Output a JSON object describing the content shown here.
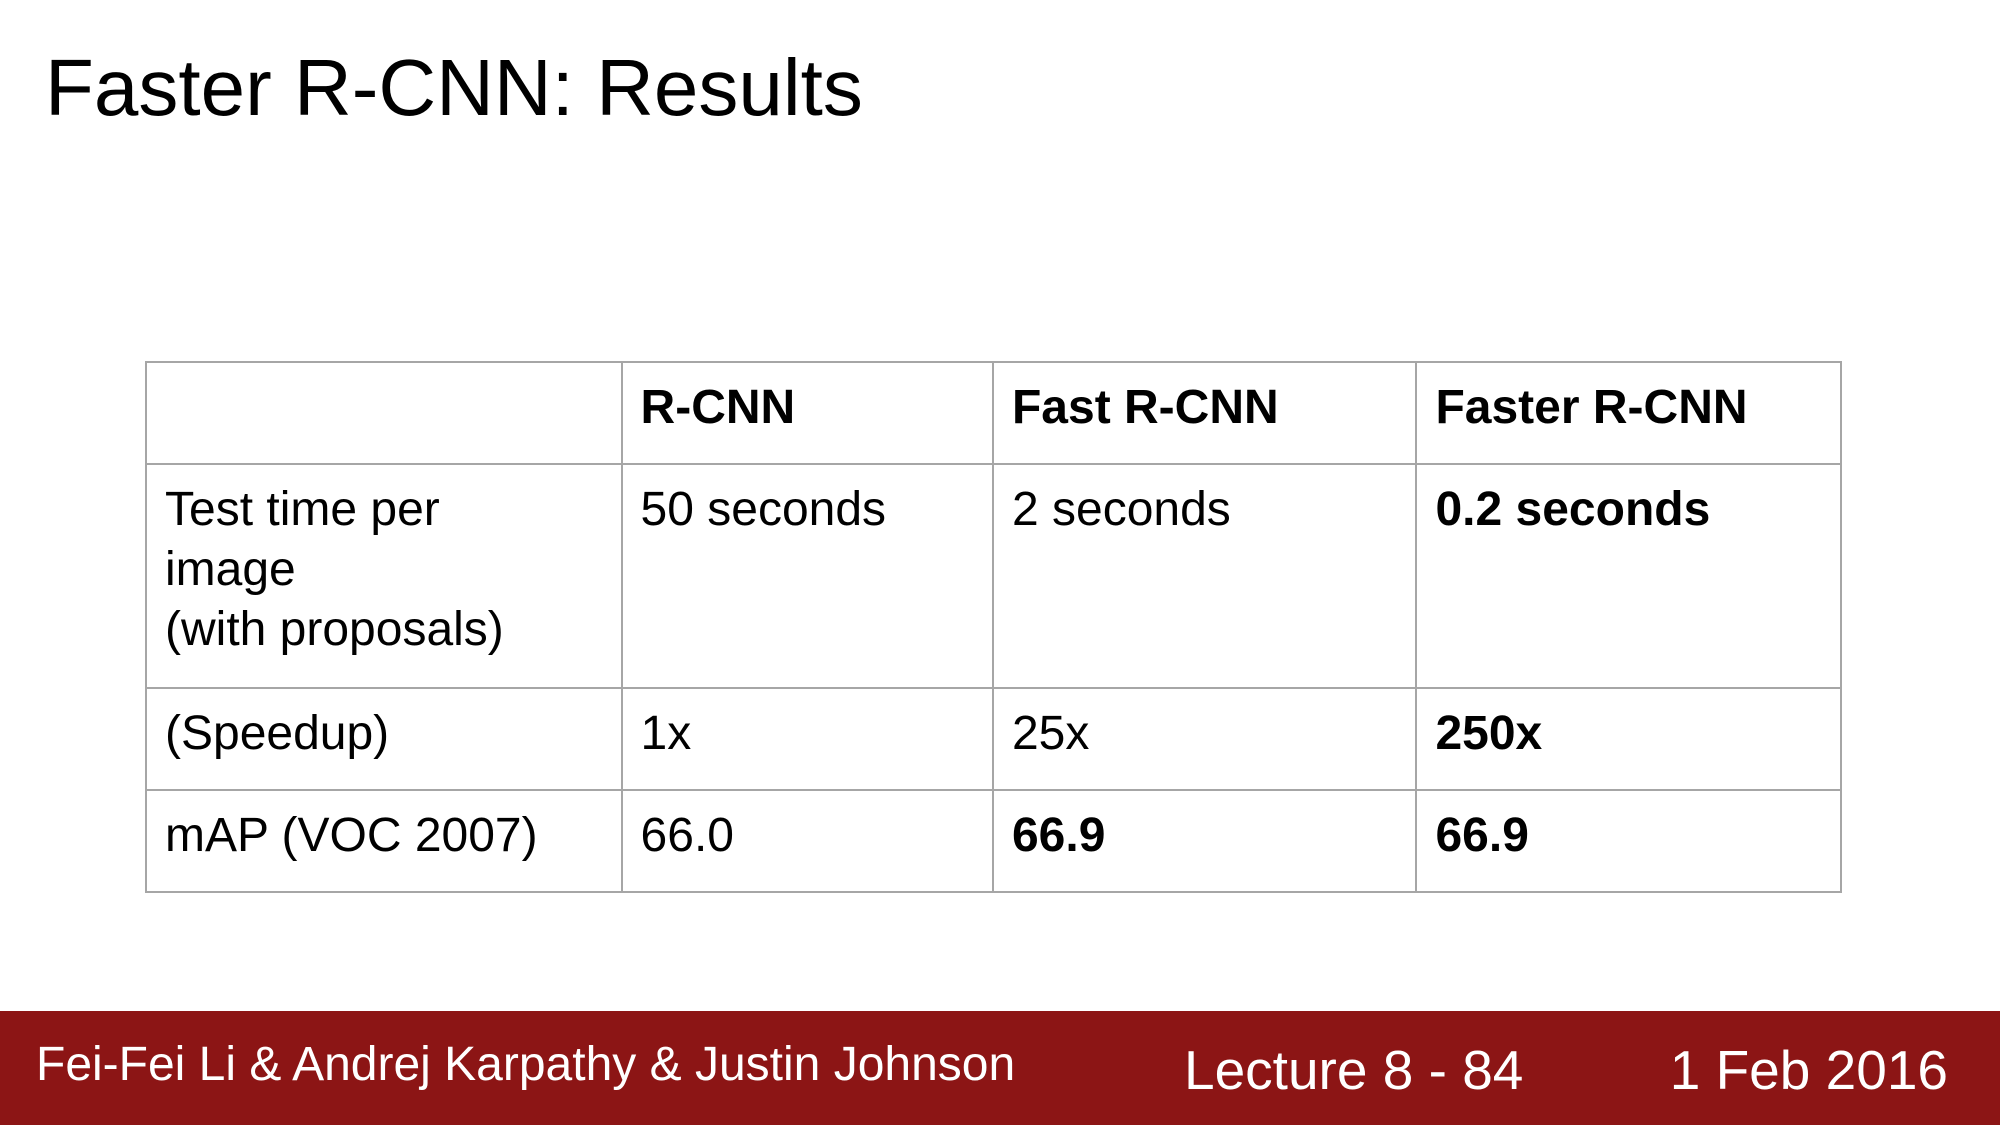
{
  "slide": {
    "title": "Faster R-CNN: Results"
  },
  "table": {
    "headers": [
      "",
      "R-CNN",
      "Fast R-CNN",
      "Faster R-CNN"
    ],
    "rows": [
      {
        "label_lines": [
          "Test time per",
          "image",
          "(with proposals)"
        ],
        "values": [
          "50 seconds",
          "2 seconds",
          "0.2 seconds"
        ]
      },
      {
        "label_lines": [
          "(Speedup)"
        ],
        "values": [
          "1x",
          "25x",
          "250x"
        ]
      },
      {
        "label_lines": [
          "mAP (VOC 2007)"
        ],
        "values": [
          "66.0",
          "66.9",
          "66.9"
        ]
      }
    ]
  },
  "footer": {
    "authors": "Fei-Fei Li & Andrej Karpathy & Justin Johnson",
    "lecture": "Lecture 8 - 84",
    "date": "1 Feb 2016",
    "background_color": "#8c1515"
  }
}
